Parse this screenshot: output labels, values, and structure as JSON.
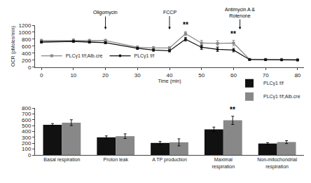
{
  "chart_data": [
    {
      "type": "line",
      "x": [
        0,
        10,
        15,
        20,
        30,
        35,
        40,
        45,
        50,
        55,
        60,
        65,
        70,
        75,
        80
      ],
      "xlim": [
        -2,
        82
      ],
      "xticks": [
        0,
        10,
        20,
        30,
        40,
        50,
        60,
        70,
        80
      ],
      "ylim": [
        0,
        1200
      ],
      "yticks": [
        0,
        200,
        400,
        600,
        800,
        1000,
        1200
      ],
      "xlabel": "Time (min)",
      "ylabel": "OCR (pMoles/min)",
      "grid": false,
      "legend": "lower left",
      "series": [
        {
          "name": "PLCγ1 f/f;Alb.cre",
          "color": "#888888",
          "marker": "square",
          "values": [
            760,
            770,
            760,
            760,
            570,
            550,
            550,
            960,
            690,
            680,
            690,
            225,
            225,
            225,
            220
          ],
          "errors": [
            40,
            40,
            40,
            40,
            40,
            40,
            40,
            60,
            80,
            80,
            80,
            20,
            20,
            20,
            20
          ]
        },
        {
          "name": "PLCγ1 f/f",
          "color": "#111111",
          "marker": "circle",
          "values": [
            720,
            740,
            720,
            700,
            540,
            490,
            470,
            800,
            570,
            510,
            490,
            220,
            215,
            210,
            205
          ],
          "errors": [
            30,
            30,
            30,
            30,
            30,
            30,
            30,
            50,
            60,
            60,
            50,
            20,
            20,
            20,
            20
          ]
        }
      ],
      "annotations": [
        {
          "text": "Oligomycin",
          "x": 20,
          "y": 1080,
          "arrow": true
        },
        {
          "text": "FCCP",
          "x": 40,
          "y": 1080,
          "arrow": true
        },
        {
          "text": "Antimycin A &\nRotenone",
          "x": 62,
          "y": 1080,
          "arrow": true
        },
        {
          "text": "**",
          "x": 45,
          "y": 1060
        },
        {
          "text": "**",
          "x": 60,
          "y": 790
        }
      ]
    },
    {
      "type": "bar",
      "categories": [
        "Basal respiration",
        "Proton leak",
        "A TP production",
        "Maximal\nrespiration",
        "Non-mitochondrial\nrespiration"
      ],
      "ylim": [
        0,
        800
      ],
      "yticks": [
        0,
        100,
        200,
        300,
        400,
        500,
        600,
        700,
        800
      ],
      "grid": false,
      "legend": "upper right",
      "series": [
        {
          "name": "PLCγ1 f/f",
          "color": "#111111",
          "values": [
            515,
            300,
            205,
            435,
            195
          ],
          "errors": [
            20,
            25,
            25,
            40,
            15
          ]
        },
        {
          "name": "PLCγ1 f/f;Alb.cre",
          "color": "#888888",
          "values": [
            550,
            320,
            215,
            590,
            220
          ],
          "errors": [
            50,
            40,
            60,
            70,
            25
          ]
        }
      ],
      "annotations": [
        {
          "text": "**",
          "x": 3,
          "y": 675,
          "series": "PLCγ1 f/f;Alb.cre"
        }
      ]
    }
  ]
}
